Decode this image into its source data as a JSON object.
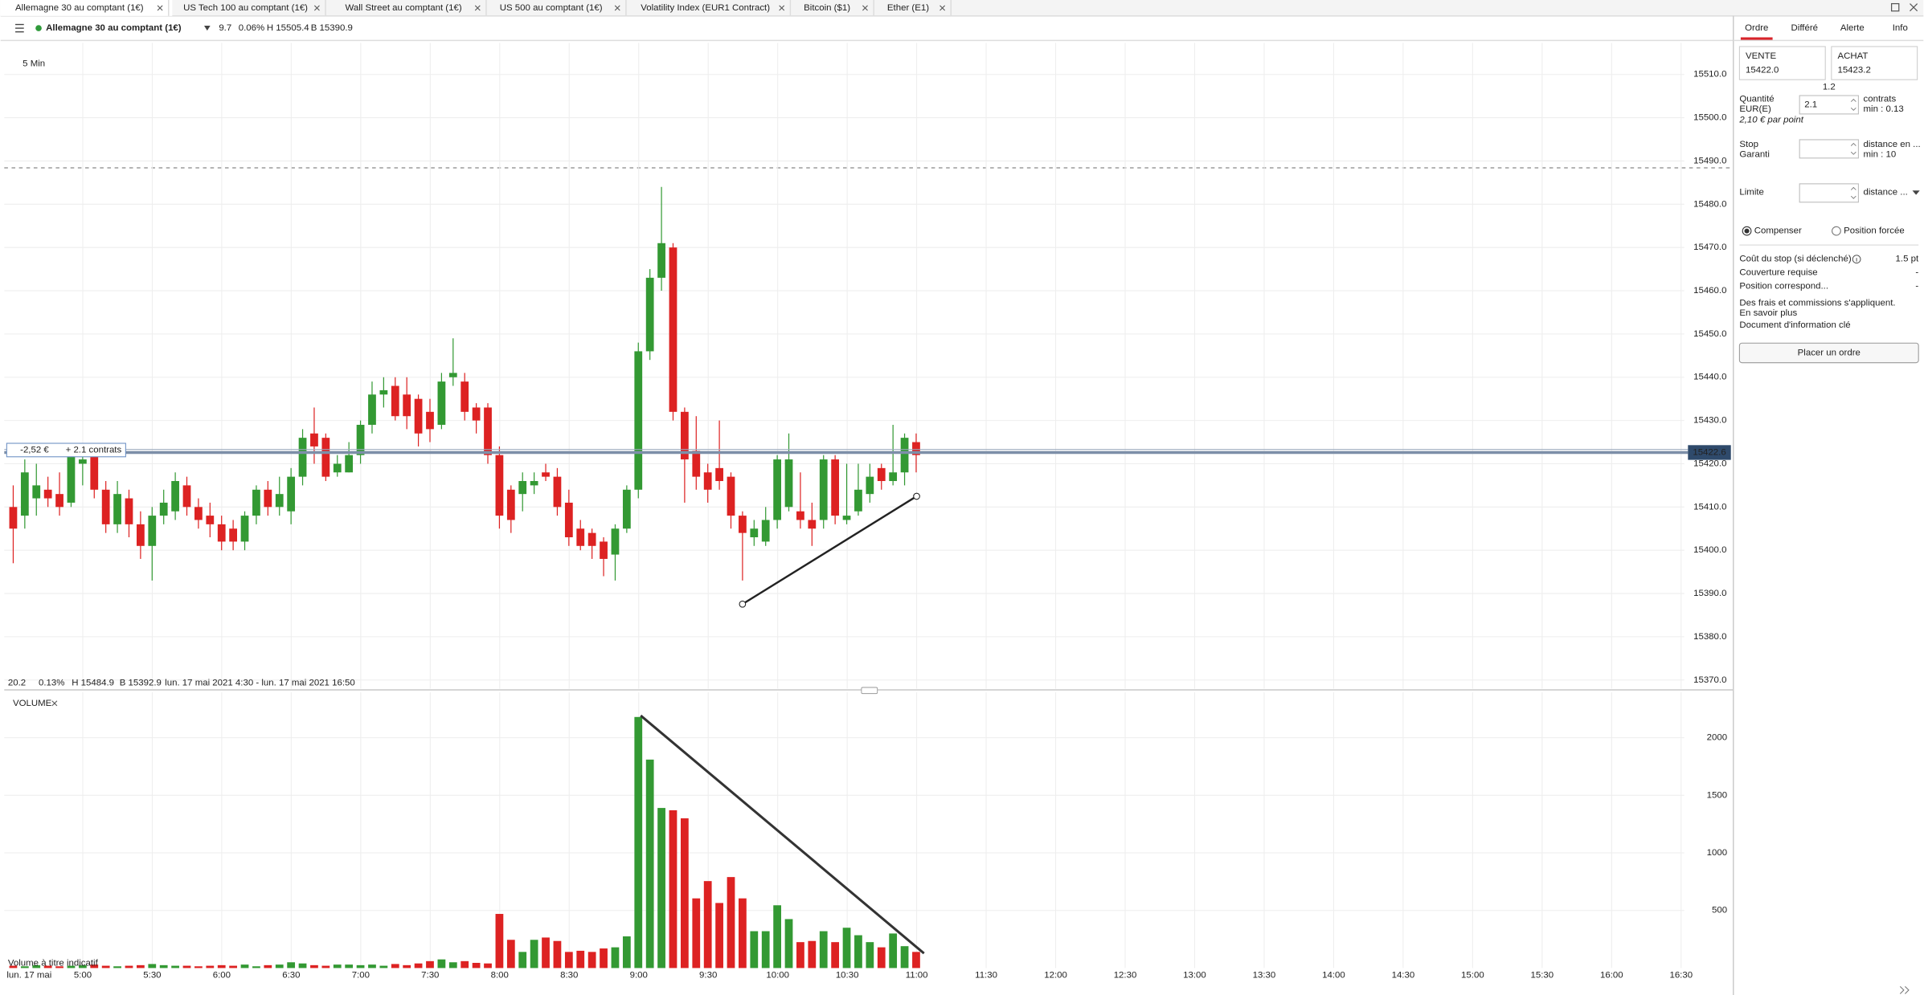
{
  "tabs": [
    "Allemagne 30 au comptant (1€)",
    "US Tech 100 au comptant (1€)",
    "Wall Street au comptant (1€)",
    "US 500 au comptant (1€)",
    "Volatility Index (EUR1 Contract)",
    "Bitcoin ($1)",
    "Ether (E1)"
  ],
  "header": {
    "instrument": "Allemagne 30 au comptant (1€)",
    "change": "9.7",
    "change_pct": "0.06%",
    "high": "H 15505.4",
    "low": "B 15390.9"
  },
  "chart_info": {
    "change": "20.2",
    "change_pct": "0.13%",
    "high": "H 15484.9",
    "low": "B 15392.9",
    "range": "lun. 17 mai 2021 4:30 - lun. 17 mai 2021 16:50",
    "date": "lun. 17 mai"
  },
  "position": {
    "pnl": "-2,52 €",
    "size": "+ 2.1 contrats"
  },
  "order_panel": {
    "tabs": [
      "Ordre",
      "Différé",
      "Alerte",
      "Info"
    ],
    "sell_label": "VENTE",
    "sell_price": "15422.0",
    "buy_label": "ACHAT",
    "buy_price": "15423.2",
    "spread": "1.2",
    "quantity_label": "Quantité",
    "currency": "EUR(E)",
    "quantity": "2.1",
    "quantity_unit": "contrats",
    "quantity_min": "min : 0.13",
    "per_point": "2,10 € par point",
    "stop_label": "Stop",
    "stop_type": "Garanti",
    "stop_unit": "distance en ...",
    "stop_min": "min : 10",
    "limit_label": "Limite",
    "limit_unit": "distance ...",
    "option_net": "Compenser",
    "option_force": "Position forcée",
    "rows": [
      [
        "Coût du stop (si déclenché)",
        "1.5 pt"
      ],
      [
        "Couverture requise",
        "-"
      ],
      [
        "Position correspond...",
        "-"
      ]
    ],
    "fees_note": "Des frais et commissions s'appliquent.",
    "learn_more": "En savoir plus",
    "kid_link": "Document d'information clé",
    "submit": "Placer un ordre"
  },
  "chart_data": [
    {
      "type": "candlestick",
      "timeframe": "5 Min",
      "up_color": "#339933",
      "down_color": "#dd2222",
      "last_price": 15422.6,
      "ylim": [
        15368,
        15517.3
      ],
      "yticks": [
        {
          "value": 15370,
          "label": "15370.0"
        },
        {
          "value": 15380,
          "label": "15380.0"
        },
        {
          "value": 15390,
          "label": "15390.0"
        },
        {
          "value": 15400,
          "label": "15400.0"
        },
        {
          "value": 15410,
          "label": "15410.0"
        },
        {
          "value": 15420,
          "label": "15420.0"
        },
        {
          "value": 15430,
          "label": "15430.0"
        },
        {
          "value": 15440,
          "label": "15440.0"
        },
        {
          "value": 15450,
          "label": "15450.0"
        },
        {
          "value": 15460,
          "label": "15460.0"
        },
        {
          "value": 15470,
          "label": "15470.0"
        },
        {
          "value": 15480,
          "label": "15480.0"
        },
        {
          "value": 15490,
          "label": "15490.0"
        },
        {
          "value": 15500,
          "label": "15500.0"
        },
        {
          "value": 15510,
          "label": "15510.0"
        }
      ],
      "open": [
        15410,
        15408,
        15412,
        15414,
        15413,
        15411,
        15420,
        15422,
        15414,
        15406,
        15412,
        15406,
        15401,
        15408,
        15409,
        15415,
        15410,
        15408,
        15406,
        15405,
        15402,
        15408,
        15414,
        15410,
        15409,
        15417,
        15427,
        15426,
        15418,
        15418,
        15422,
        15429,
        15436,
        15438,
        15436,
        15435,
        15432,
        15429,
        15440,
        15439,
        15433,
        15433,
        15422,
        15414,
        15413,
        15415,
        15418,
        15417,
        15411,
        15405,
        15404,
        15402,
        15399,
        15405,
        15414,
        15446,
        15463,
        15470,
        15432,
        15423,
        15418,
        15419,
        15417,
        15408,
        15403,
        15402,
        15407,
        15410,
        15409,
        15407,
        15407,
        15421,
        15407,
        15409,
        15413,
        15419,
        15416,
        15418,
        15425
      ],
      "high": [
        15415,
        15421,
        15420,
        15417,
        15418,
        15424,
        15424,
        15423,
        15416,
        15416,
        15414,
        15409,
        15410,
        15414,
        15418,
        15417,
        15412,
        15411,
        15408,
        15407,
        15409,
        15415,
        15416,
        15417,
        15419,
        15428,
        15433,
        15427,
        15422,
        15425,
        15430,
        15439,
        15440,
        15440,
        15440,
        15436,
        15435,
        15441,
        15449,
        15441,
        15434,
        15434,
        15424,
        15415,
        15418,
        15418,
        15420,
        15419,
        15414,
        15407,
        15405,
        15403,
        15406,
        15415,
        15448,
        15465,
        15484,
        15471,
        15433,
        15431,
        15420,
        15430,
        15418,
        15409,
        15407,
        15410,
        15422,
        15427,
        15418,
        15411,
        15422,
        15422,
        15420,
        15420,
        15420,
        15420,
        15429,
        15427,
        15427
      ],
      "low": [
        15397,
        15405,
        15408,
        15410,
        15408,
        15410,
        15415,
        15412,
        15404,
        15404,
        15403,
        15398,
        15393,
        15406,
        15407,
        15408,
        15405,
        15403,
        15400,
        15400,
        15400,
        15406,
        15408,
        15408,
        15406,
        15415,
        15420,
        15416,
        15417,
        15418,
        15420,
        15427,
        15433,
        15430,
        15428,
        15424,
        15425,
        15428,
        15438,
        15430,
        15427,
        15420,
        15405,
        15404,
        15409,
        15413,
        15416,
        15408,
        15401,
        15400,
        15398,
        15394,
        15393,
        15404,
        15412,
        15444,
        15460,
        15430,
        15411,
        15414,
        15411,
        15414,
        15405,
        15393,
        15401,
        15401,
        15405,
        15409,
        15405,
        15401,
        15405,
        15406,
        15406,
        15408,
        15411,
        15414,
        15415,
        15415,
        15418
      ],
      "close": [
        15405,
        15418,
        15415,
        15412,
        15410,
        15422,
        15421,
        15414,
        15406,
        15413,
        15406,
        15401,
        15408,
        15411,
        15416,
        15410,
        15407,
        15406,
        15402,
        15402,
        15408,
        15414,
        15410,
        15413,
        15417,
        15426,
        15424,
        15417,
        15420,
        15422,
        15429,
        15436,
        15437,
        15431,
        15431,
        15427,
        15428,
        15439,
        15441,
        15432,
        15430,
        15422,
        15408,
        15407,
        15416,
        15416,
        15417,
        15410,
        15403,
        15401,
        15401,
        15398,
        15405,
        15414,
        15446,
        15463,
        15471,
        15432,
        15421,
        15417,
        15414,
        15416,
        15408,
        15404,
        15405,
        15407,
        15421,
        15421,
        15407,
        15405,
        15421,
        15408,
        15408,
        15414,
        15417,
        15416,
        15418,
        15426,
        15422
      ]
    },
    {
      "type": "bar",
      "title": "VOLUME",
      "note": "Volume à titre indicatif",
      "ylim": [
        0,
        2394
      ],
      "yticks": [
        500,
        1000,
        1500,
        2000
      ],
      "xticks": [
        "5:00",
        "5:30",
        "6:00",
        "6:30",
        "7:00",
        "7:30",
        "8:00",
        "8:30",
        "9:00",
        "9:30",
        "10:00",
        "10:30",
        "11:00",
        "11:30",
        "12:00",
        "12:30",
        "13:00",
        "13:30",
        "14:00",
        "14:30",
        "15:00",
        "15:30",
        "16:00",
        "16:30"
      ],
      "values": [
        20,
        15,
        25,
        20,
        15,
        20,
        25,
        30,
        20,
        15,
        20,
        25,
        35,
        25,
        20,
        20,
        15,
        20,
        25,
        20,
        30,
        15,
        25,
        30,
        50,
        40,
        25,
        20,
        30,
        30,
        25,
        30,
        20,
        35,
        25,
        40,
        60,
        75,
        50,
        60,
        45,
        40,
        470,
        245,
        140,
        245,
        265,
        235,
        140,
        150,
        140,
        170,
        180,
        275,
        2180,
        1810,
        1390,
        1370,
        1300,
        605,
        755,
        565,
        790,
        605,
        320,
        320,
        545,
        425,
        225,
        235,
        320,
        225,
        350,
        285,
        225,
        180,
        300,
        190,
        140
      ]
    }
  ]
}
